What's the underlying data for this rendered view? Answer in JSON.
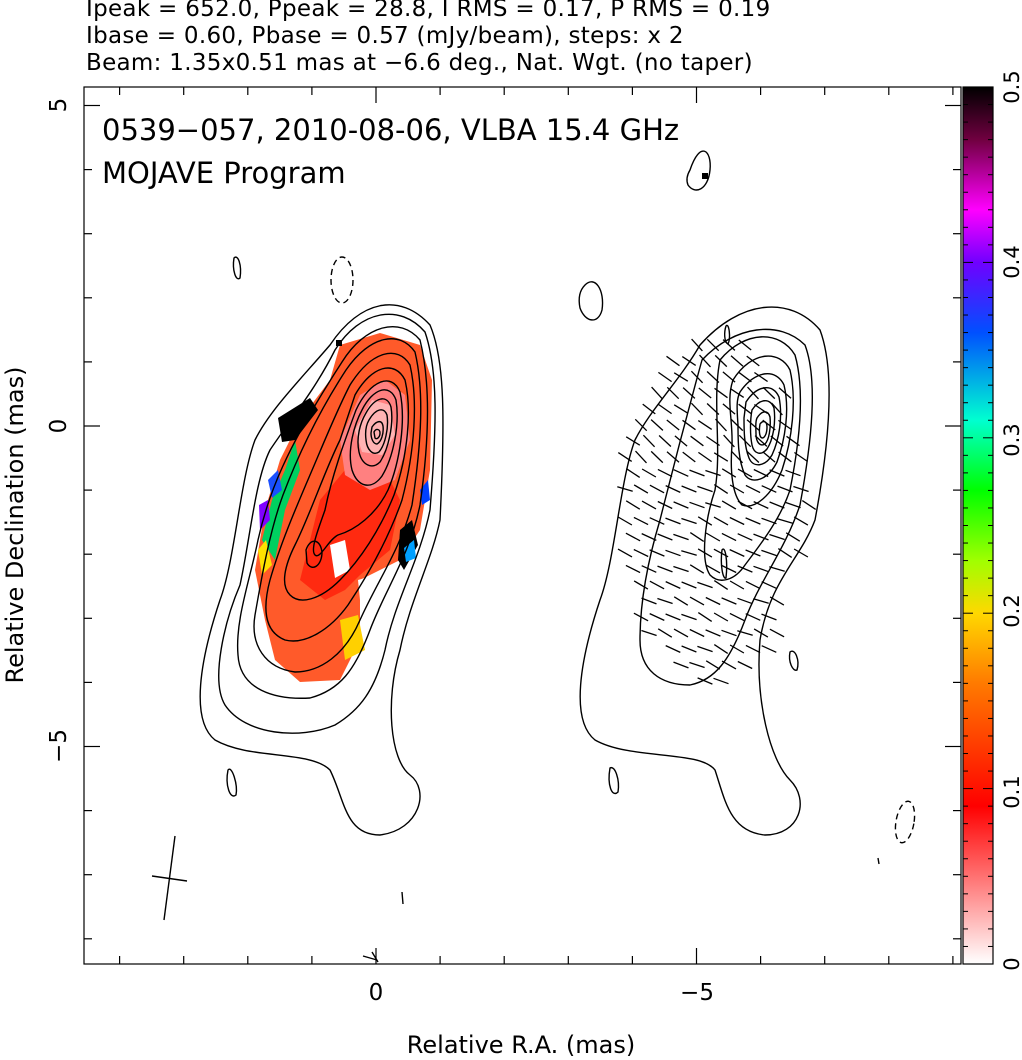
{
  "header": {
    "line1": "Ipeak = 652.0, Ppeak = 28.8, I RMS = 0.17, P RMS = 0.19",
    "line2": "Ibase = 0.60, Pbase = 0.57 (mJy/beam), steps: x 2",
    "line3": "Beam: 1.35x0.51 mas at −6.6 deg., Nat. Wgt. (no taper)"
  },
  "annotation": {
    "line1": "0539−057, 2010-08-06, VLBA 15.4 GHz",
    "line2": "MOJAVE Program"
  },
  "chart_data": {
    "type": "heatmap",
    "title": "0539−057, 2010-08-06, VLBA 15.4 GHz",
    "subtitle": "MOJAVE Program",
    "xlabel": "Relative R.A. (mas)",
    "ylabel": "Relative Declination (mas)",
    "x_tick_labels": [
      "0",
      "−5"
    ],
    "y_tick_labels": [
      "5",
      "0",
      "−5"
    ],
    "xlim": [
      4.6,
      -9.2
    ],
    "ylim": [
      -8.4,
      5.2
    ],
    "colorbar": {
      "label_values": [
        "0",
        "0.1",
        "0.2",
        "0.3",
        "0.4",
        "0.5"
      ],
      "range": [
        0,
        0.5
      ]
    },
    "stokes_I": {
      "peak": 652.0,
      "base": 0.6,
      "rms": 0.17,
      "units": "mJy/beam",
      "contour_step": "x 2",
      "core_position_mas": [
        0.0,
        -0.1
      ],
      "jet_direction": "south-east"
    },
    "polarization": {
      "peak": 28.8,
      "base": 0.57,
      "rms": 0.19,
      "fractional_pol_range": [
        0.05,
        0.5
      ]
    },
    "beam": {
      "major": 1.35,
      "minor": 0.51,
      "pa_deg": -6.6,
      "weighting": "Nat. Wgt. (no taper)"
    }
  }
}
